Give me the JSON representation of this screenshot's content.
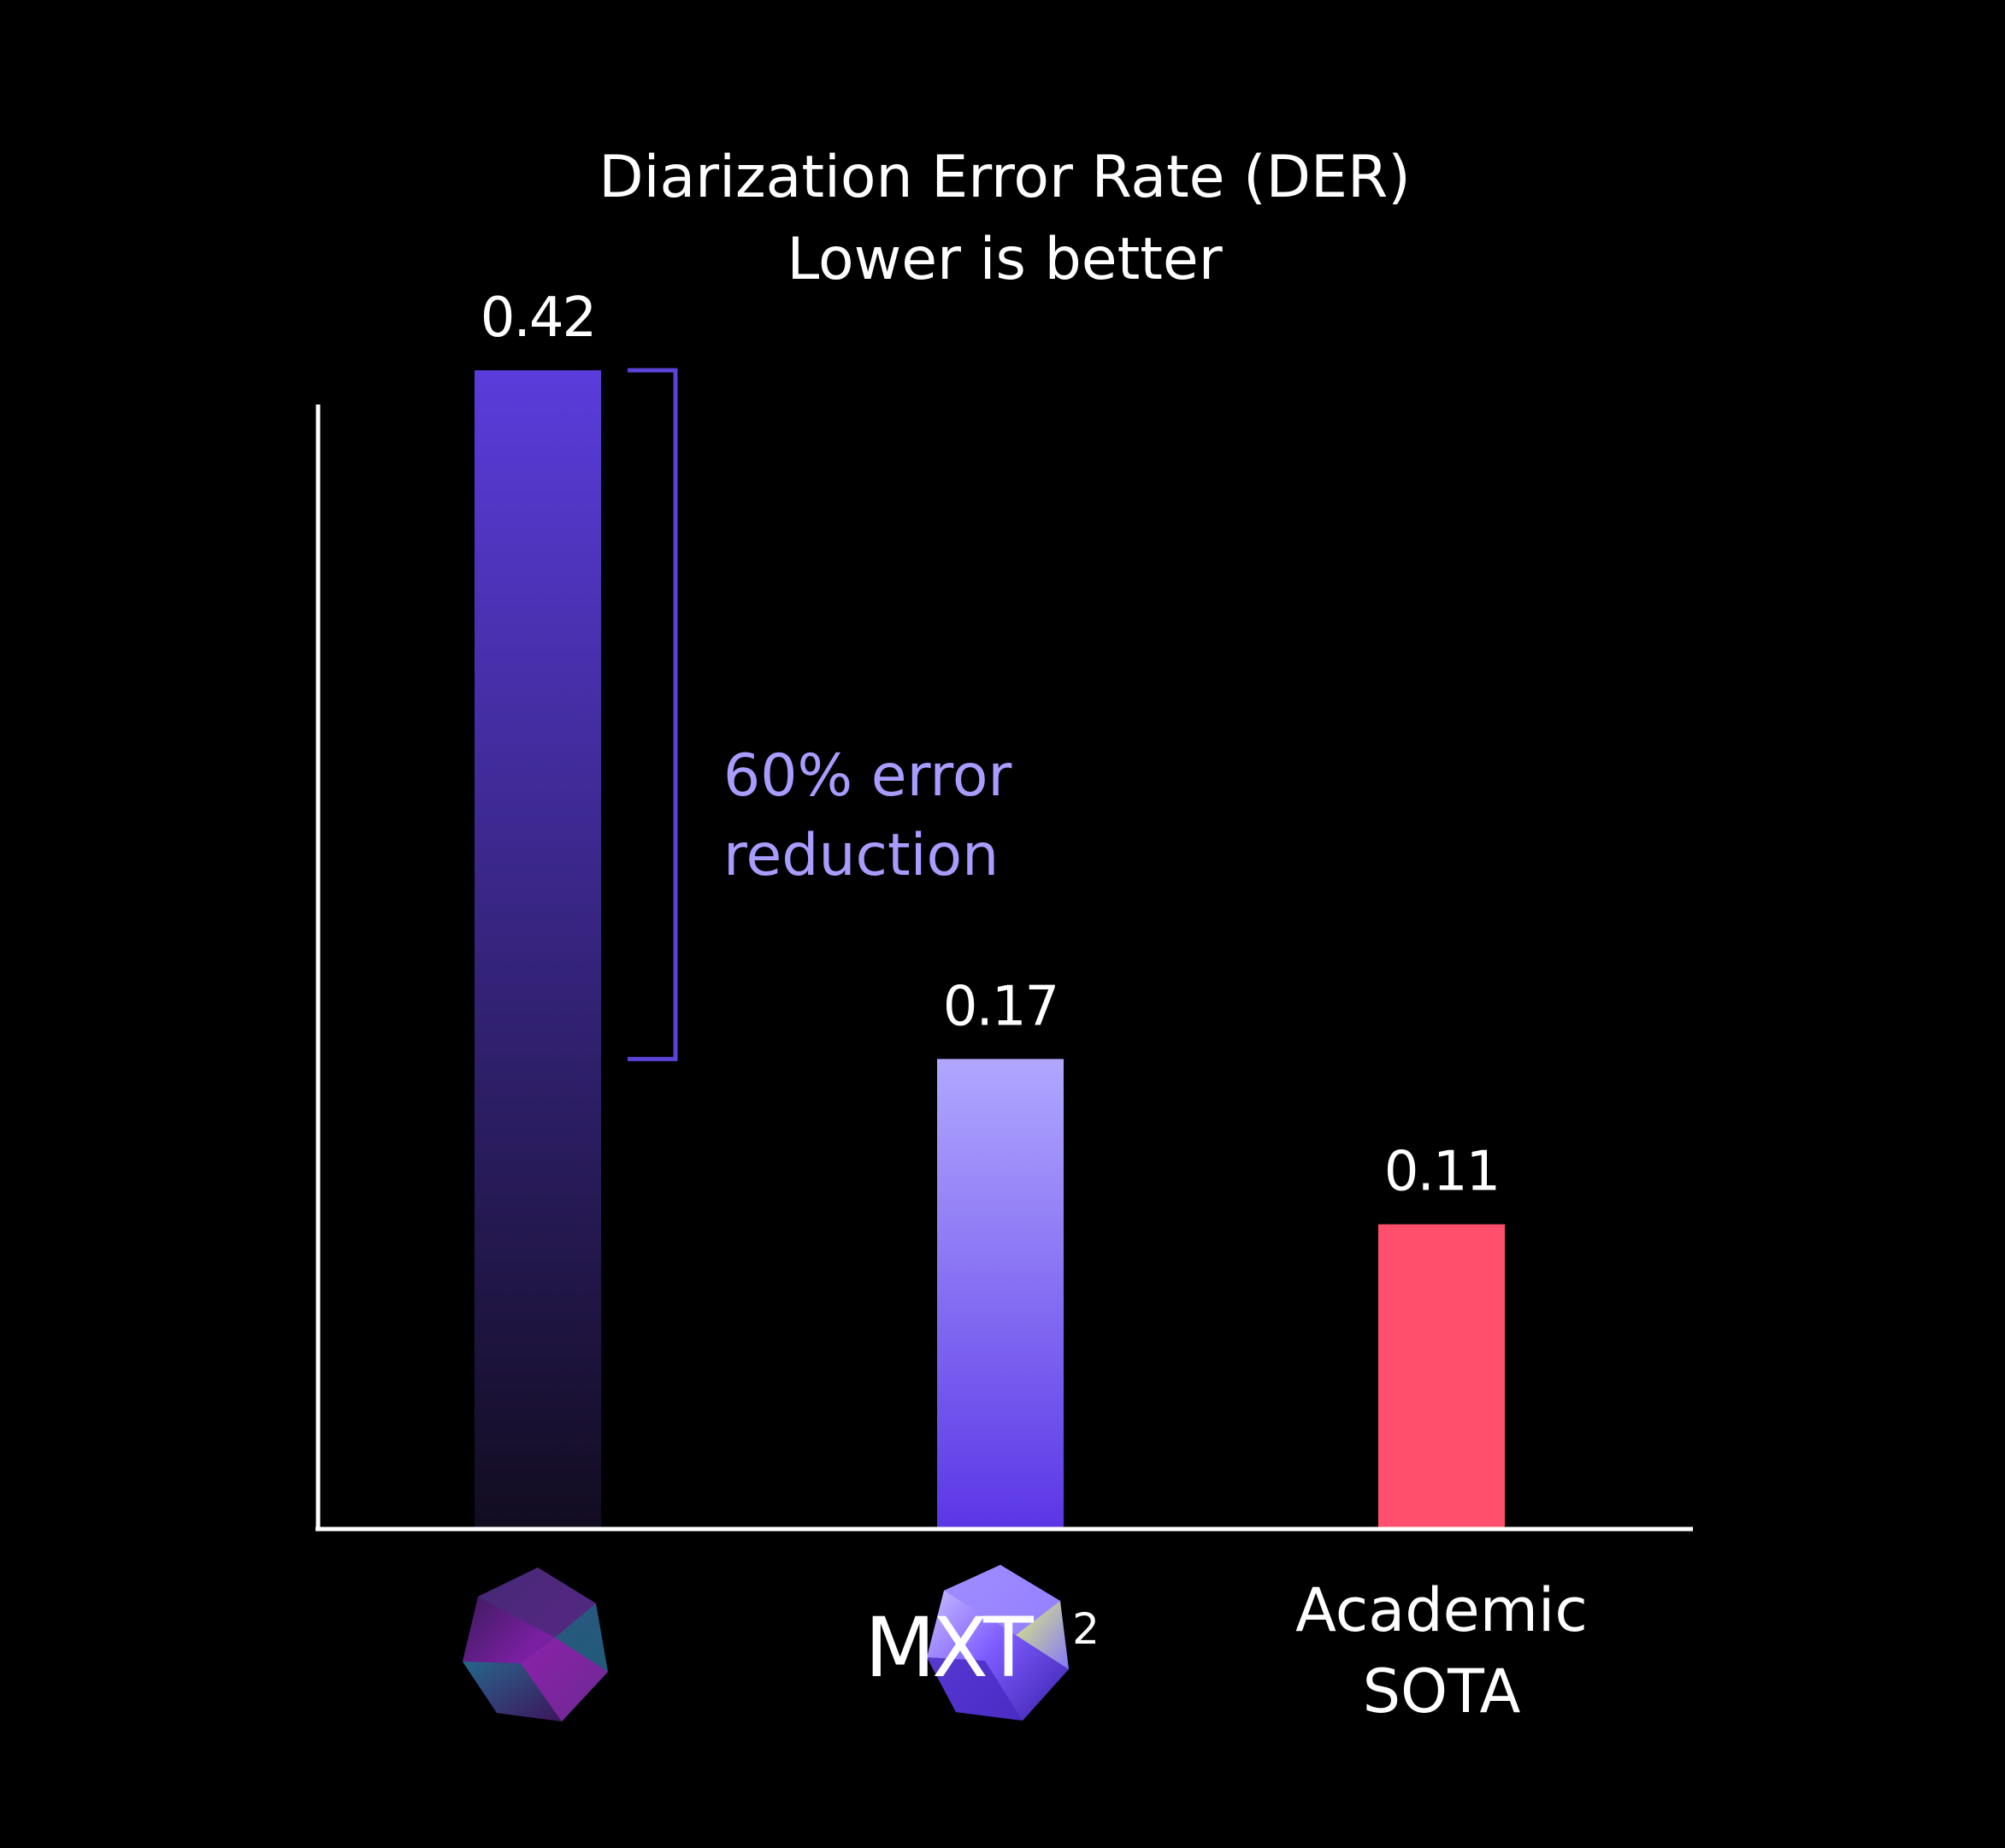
{
  "chart_data": {
    "type": "bar",
    "title": "Diarization Error Rate (DER)",
    "subtitle": "Lower is better",
    "categories": [
      "",
      "MXT²",
      "Academic SOTA"
    ],
    "values": [
      0.42,
      0.17,
      0.11
    ],
    "value_labels": [
      "0.42",
      "0.17",
      "0.11"
    ],
    "category_label_lines": [
      [],
      [],
      [
        "Academic",
        "SOTA"
      ]
    ],
    "logos": [
      "gem-icon",
      "mxt2-gem-icon",
      ""
    ],
    "logo_texts": [
      "",
      "MXT",
      ""
    ],
    "logo_superscripts": [
      "",
      "2",
      ""
    ],
    "ylim": [
      0,
      0.5
    ],
    "grid": false,
    "legend": "none",
    "colors": {
      "background": "#000000",
      "text": "#ffffff",
      "axis": "#ffffff",
      "bar1_top": "#5a3cdb",
      "bar1_bottom": "#120c20",
      "bar2_top": "#b0a7ff",
      "bar2_bottom": "#5b36e6",
      "bar3": "#ff4f6c",
      "annotation": "#a89cff",
      "bracket": "#5c43d6"
    },
    "annotation": {
      "text_lines": [
        "60% error",
        "reduction"
      ],
      "from_bar": 0,
      "to_bar": 1
    }
  }
}
